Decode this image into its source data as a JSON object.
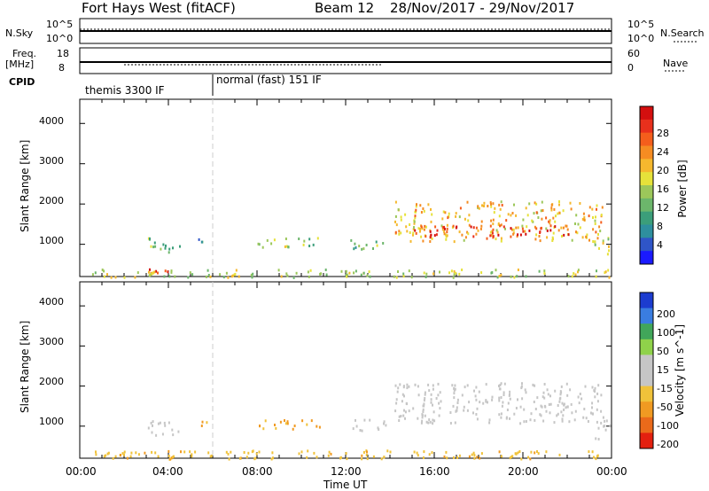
{
  "header": {
    "title": "Fort Hays West (fitACF)",
    "beam": "Beam 12",
    "dates": "28/Nov/2017 - 29/Nov/2017"
  },
  "top_panels": {
    "nsky_label": "N.Sky",
    "nsky_ticks": [
      "10^5",
      "10^0"
    ],
    "nsearch_label": "N.Search",
    "nsearch_ticks": [
      "10^5",
      "10^0"
    ],
    "freq_label": "Freq.",
    "freq_unit": "[MHz]",
    "freq_ticks": [
      "18",
      "8"
    ],
    "nave_label": "Nave",
    "nave_ticks": [
      "60",
      "0"
    ],
    "cpid_label": "CPID",
    "cpid_segments": [
      "themis 3300 IF",
      "normal (fast) 151 IF"
    ]
  },
  "colors": {
    "power_scale": [
      "#1a1aff",
      "#2f55c8",
      "#2e8f9e",
      "#3b9e7a",
      "#6cb66b",
      "#9cc75a",
      "#e6e23a",
      "#f5b82e",
      "#f58c22",
      "#f45e1c",
      "#e8301c",
      "#d40f0f"
    ],
    "velocity_scale": [
      "#1c3ccf",
      "#3a7de0",
      "#41a65a",
      "#8fd24a",
      "#c6c6c6",
      "#c6c6c6",
      "#f0c23a",
      "#f09a22",
      "#ea6a1a",
      "#e3200f"
    ]
  },
  "chart_data": [
    {
      "type": "heatmap",
      "title": "Power",
      "ylabel": "Slant Range [km]",
      "xlabel": "",
      "yticks": [
        "1000",
        "2000",
        "3000",
        "4000"
      ],
      "ylim": [
        200,
        4600
      ],
      "xlim": [
        0,
        24
      ],
      "colorbar_label": "Power [dB]",
      "colorbar_ticks": [
        "4",
        "8",
        "12",
        "16",
        "20",
        "24",
        "28"
      ],
      "blobs": [
        {
          "t0": 3.0,
          "t1": 4.5,
          "r0": 800,
          "r1": 1200,
          "value": 12
        },
        {
          "t0": 2.5,
          "t1": 4.0,
          "r0": 300,
          "r1": 450,
          "value": 28
        },
        {
          "t0": 5.2,
          "t1": 5.8,
          "r0": 1000,
          "r1": 1200,
          "value": 8
        },
        {
          "t0": 8.0,
          "t1": 10.8,
          "r0": 950,
          "r1": 1200,
          "value": 14
        },
        {
          "t0": 12.2,
          "t1": 13.8,
          "r0": 900,
          "r1": 1200,
          "value": 12
        },
        {
          "t0": 14.2,
          "t1": 23.6,
          "r0": 1100,
          "r1": 2100,
          "value": 20
        },
        {
          "t0": 15.0,
          "t1": 22.5,
          "r0": 1200,
          "r1": 1500,
          "value": 28
        },
        {
          "t0": 23.2,
          "t1": 24.0,
          "r0": 700,
          "r1": 1200,
          "value": 16
        },
        {
          "t0": 0.5,
          "t1": 24.0,
          "r0": 200,
          "r1": 400,
          "value": 16
        }
      ]
    },
    {
      "type": "heatmap",
      "title": "Velocity",
      "ylabel": "Slant Range [km]",
      "xlabel": "Time UT",
      "yticks": [
        "1000",
        "2000",
        "3000",
        "4000"
      ],
      "ylim": [
        200,
        4600
      ],
      "xlim": [
        0,
        24
      ],
      "xticks": [
        "00:00",
        "04:00",
        "08:00",
        "12:00",
        "16:00",
        "20:00",
        "00:00"
      ],
      "colorbar_label": "Velocity [m s^-1]",
      "colorbar_ticks": [
        "200",
        "100",
        "50",
        "15",
        "-15",
        "-50",
        "-100",
        "-200"
      ],
      "blobs": [
        {
          "t0": 3.0,
          "t1": 4.5,
          "r0": 800,
          "r1": 1200,
          "value": 0
        },
        {
          "t0": 5.2,
          "t1": 5.8,
          "r0": 1000,
          "r1": 1200,
          "value": -50
        },
        {
          "t0": 8.0,
          "t1": 10.8,
          "r0": 950,
          "r1": 1200,
          "value": -60
        },
        {
          "t0": 12.2,
          "t1": 13.8,
          "r0": 900,
          "r1": 1200,
          "value": 0
        },
        {
          "t0": 14.2,
          "t1": 23.6,
          "r0": 1100,
          "r1": 2100,
          "value": 0
        },
        {
          "t0": 23.2,
          "t1": 24.0,
          "r0": 700,
          "r1": 1200,
          "value": 0
        },
        {
          "t0": 0.5,
          "t1": 24.0,
          "r0": 200,
          "r1": 420,
          "value": -40
        }
      ]
    }
  ]
}
